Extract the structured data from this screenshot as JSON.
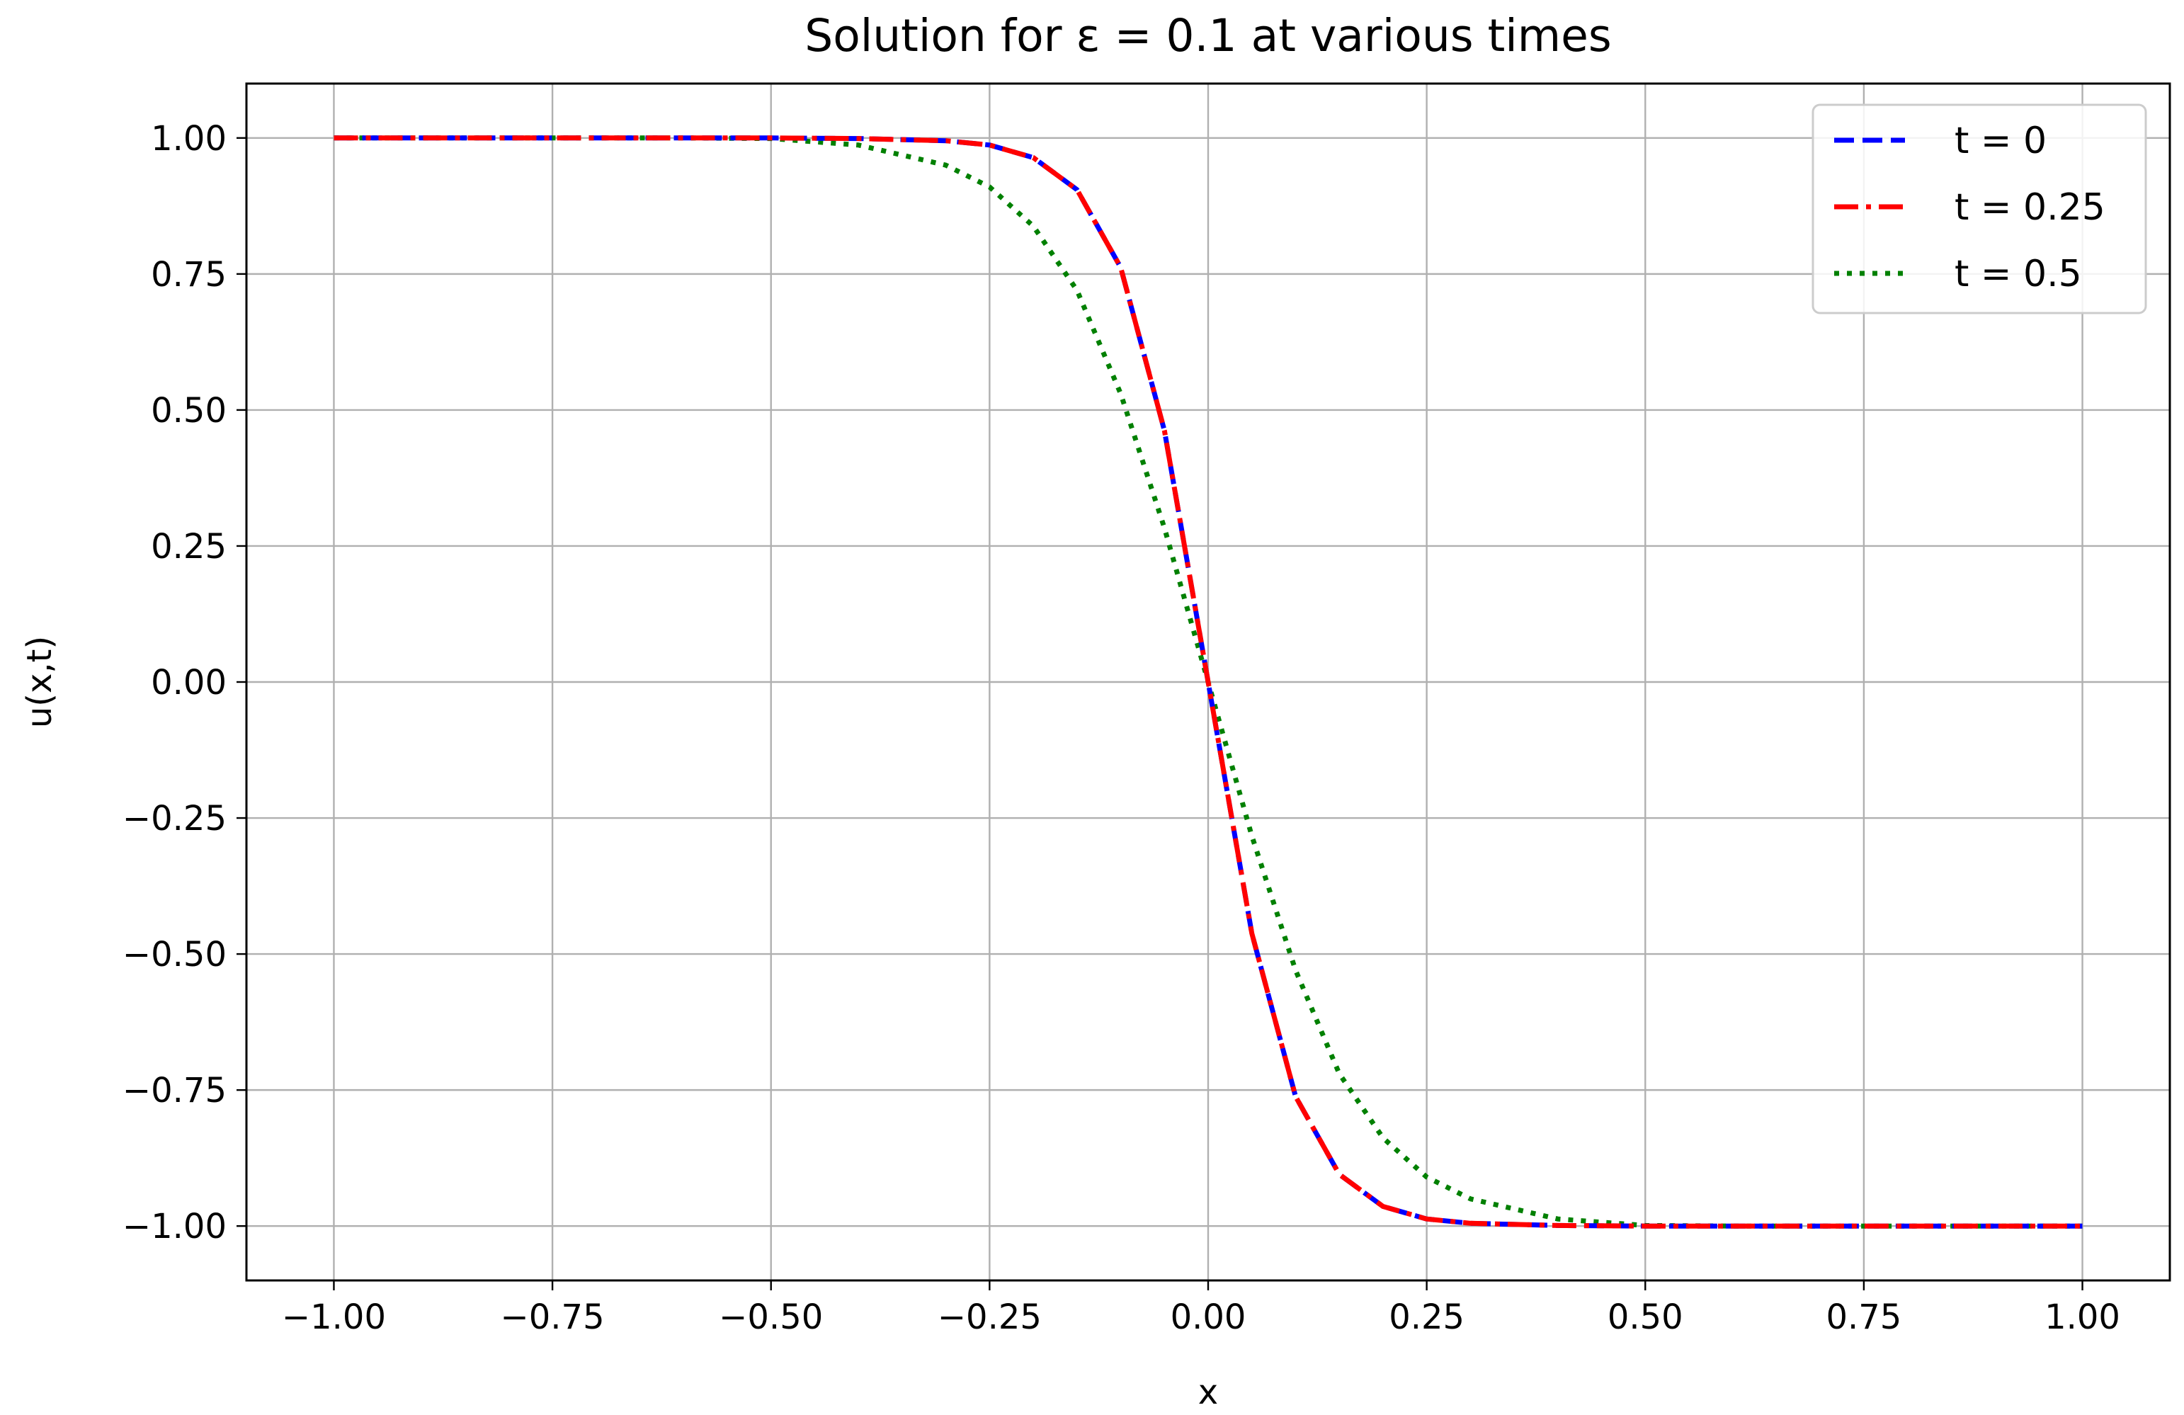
{
  "chart_data": {
    "type": "line",
    "title": "Solution for ε = 0.1 at various times",
    "xlabel": "x",
    "ylabel": "u(x,t)",
    "xlim": [
      -1.1,
      1.1
    ],
    "ylim": [
      -1.1,
      1.1
    ],
    "xticks": [
      -1.0,
      -0.75,
      -0.5,
      -0.25,
      0.0,
      0.25,
      0.5,
      0.75,
      1.0
    ],
    "xtick_labels": [
      "−1.00",
      "−0.75",
      "−0.50",
      "−0.25",
      "0.00",
      "0.25",
      "0.50",
      "0.75",
      "1.00"
    ],
    "yticks": [
      1.0,
      0.75,
      0.5,
      0.25,
      0.0,
      -0.25,
      -0.5,
      -0.75,
      -1.0
    ],
    "ytick_labels": [
      "1.00",
      "0.75",
      "0.50",
      "0.25",
      "0.00",
      "−0.25",
      "−0.50",
      "−0.75",
      "−1.00"
    ],
    "grid": true,
    "legend_position": "top-right",
    "series": [
      {
        "name": "t = 0",
        "color": "#0000ff",
        "style": "dashed",
        "x": [
          -1.0,
          -0.5,
          -0.4,
          -0.3,
          -0.25,
          -0.2,
          -0.15,
          -0.1,
          -0.05,
          0.0,
          0.05,
          0.1,
          0.15,
          0.2,
          0.25,
          0.3,
          0.4,
          0.5,
          1.0
        ],
        "y": [
          1.0,
          1.0,
          0.999,
          0.995,
          0.987,
          0.964,
          0.905,
          0.762,
          0.462,
          0.0,
          -0.462,
          -0.762,
          -0.905,
          -0.964,
          -0.987,
          -0.995,
          -0.999,
          -1.0,
          -1.0
        ]
      },
      {
        "name": "t = 0.25",
        "color": "#ff0000",
        "style": "dashdot",
        "x": [
          -1.0,
          -0.5,
          -0.4,
          -0.3,
          -0.25,
          -0.2,
          -0.15,
          -0.1,
          -0.05,
          0.0,
          0.05,
          0.1,
          0.15,
          0.2,
          0.25,
          0.3,
          0.4,
          0.5,
          1.0
        ],
        "y": [
          1.0,
          1.0,
          0.999,
          0.995,
          0.987,
          0.964,
          0.905,
          0.762,
          0.462,
          0.0,
          -0.462,
          -0.762,
          -0.905,
          -0.964,
          -0.987,
          -0.995,
          -0.999,
          -1.0,
          -1.0
        ]
      },
      {
        "name": "t = 0.5",
        "color": "#008000",
        "style": "dotted",
        "x": [
          -1.0,
          -0.6,
          -0.5,
          -0.4,
          -0.3,
          -0.25,
          -0.2,
          -0.15,
          -0.1,
          -0.05,
          0.0,
          0.05,
          0.1,
          0.15,
          0.2,
          0.25,
          0.3,
          0.4,
          0.5,
          0.6,
          1.0
        ],
        "y": [
          1.0,
          1.0,
          0.999,
          0.987,
          0.95,
          0.91,
          0.838,
          0.72,
          0.53,
          0.283,
          0.0,
          -0.283,
          -0.53,
          -0.72,
          -0.838,
          -0.91,
          -0.95,
          -0.987,
          -0.999,
          -1.0,
          -1.0
        ]
      }
    ]
  }
}
